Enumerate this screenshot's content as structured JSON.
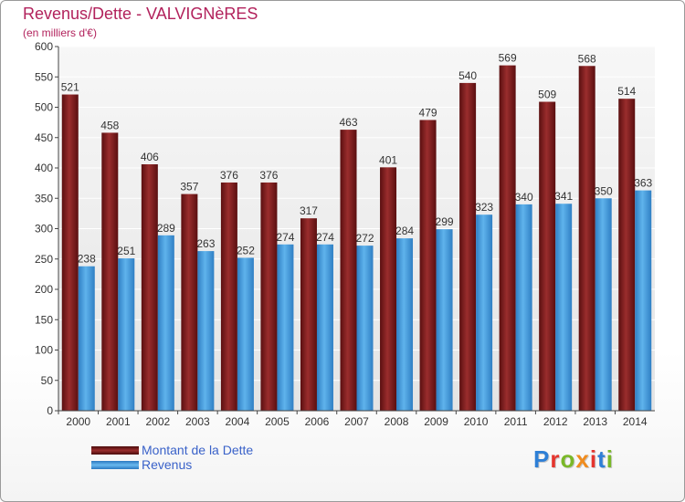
{
  "title": "Revenus/Dette - VALVIGNèRES",
  "subtitle": "(en milliers d'€)",
  "logo": "Proxiti",
  "chart_data": {
    "type": "bar",
    "categories": [
      "2000",
      "2001",
      "2002",
      "2003",
      "2004",
      "2005",
      "2006",
      "2007",
      "2008",
      "2009",
      "2010",
      "2011",
      "2012",
      "2013",
      "2014"
    ],
    "series": [
      {
        "name": "Montant de la Dette",
        "color": "#8b1a1a",
        "values": [
          521,
          458,
          406,
          357,
          376,
          376,
          317,
          463,
          401,
          479,
          540,
          569,
          509,
          568,
          514
        ]
      },
      {
        "name": "Revenus",
        "color": "#3a9be0",
        "values": [
          238,
          251,
          289,
          263,
          252,
          274,
          274,
          272,
          284,
          299,
          323,
          340,
          341,
          350,
          363
        ]
      }
    ],
    "ylim": [
      0,
      600
    ],
    "yticks": [
      0,
      50,
      100,
      150,
      200,
      250,
      300,
      350,
      400,
      450,
      500,
      550,
      600
    ],
    "grid": true,
    "legend_position": "bottom-left"
  }
}
